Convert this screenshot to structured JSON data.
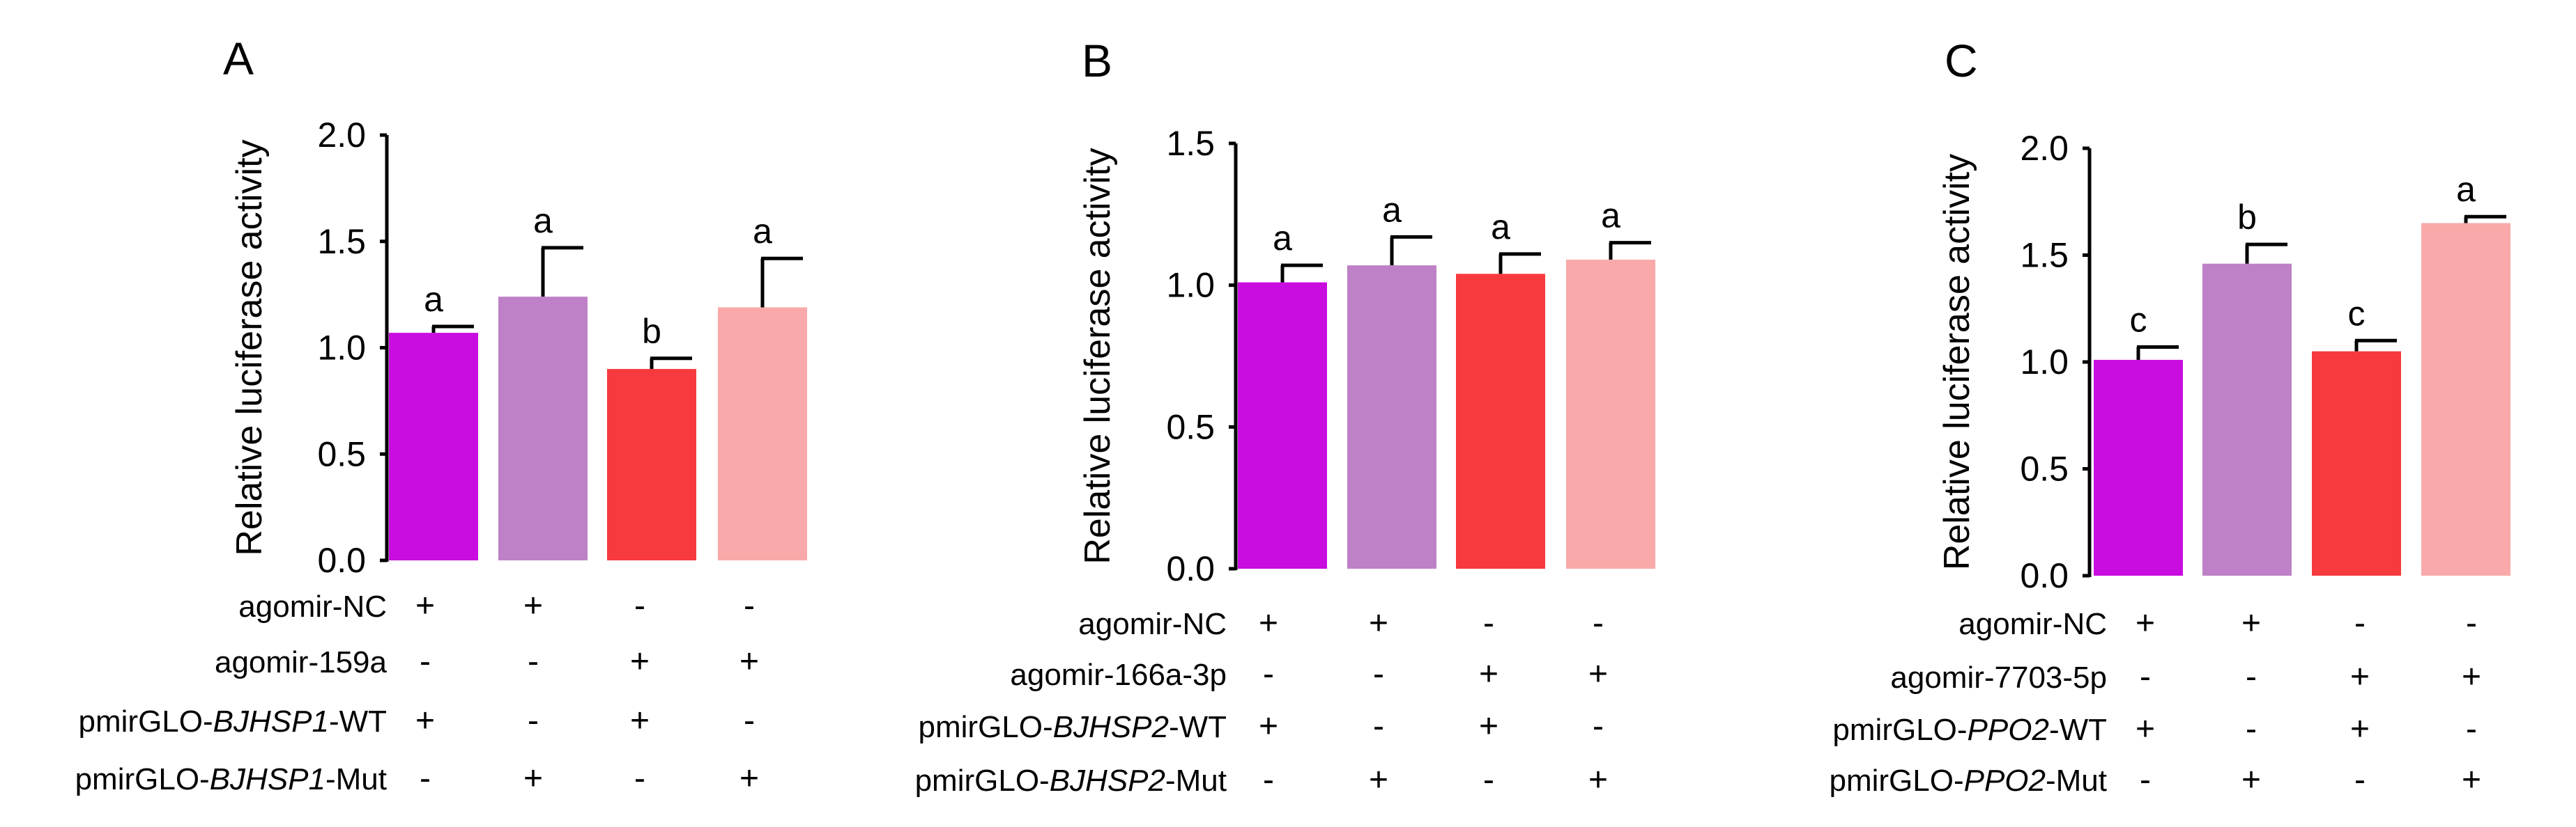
{
  "chart_data": [
    {
      "type": "bar",
      "panel_label": "A",
      "ylabel": "Relative luciferase activity",
      "ylim": [
        0,
        2.0
      ],
      "yticks": [
        "0.0",
        "0.5",
        "1.0",
        "1.5",
        "2.0"
      ],
      "bars": [
        {
          "value": 1.07,
          "error": 0.03,
          "letter": "a",
          "color": "#c90de0"
        },
        {
          "value": 1.24,
          "error": 0.23,
          "letter": "a",
          "color": "#be80c6"
        },
        {
          "value": 0.9,
          "error": 0.05,
          "letter": "b",
          "color": "#f73a3d"
        },
        {
          "value": 1.19,
          "error": 0.23,
          "letter": "a",
          "color": "#f9a9a9"
        }
      ],
      "conditions": [
        {
          "label": "agomir-NC",
          "signs": [
            "+",
            "+",
            "-",
            "-"
          ]
        },
        {
          "label": "agomir-159a",
          "signs": [
            "-",
            "-",
            "+",
            "+"
          ]
        },
        {
          "label_prefix": "pmirGLO-",
          "label_gene": "BJHSP1",
          "label_suffix": "-WT",
          "signs": [
            "+",
            "-",
            "+",
            "-"
          ]
        },
        {
          "label_prefix": "pmirGLO-",
          "label_gene": "BJHSP1",
          "label_suffix": "-Mut",
          "signs": [
            "-",
            "+",
            "-",
            "+"
          ]
        }
      ]
    },
    {
      "type": "bar",
      "panel_label": "B",
      "ylabel": "Relative luciferase activity",
      "ylim": [
        0,
        1.5
      ],
      "yticks": [
        "0.0",
        "0.5",
        "1.0",
        "1.5"
      ],
      "bars": [
        {
          "value": 1.01,
          "error": 0.06,
          "letter": "a",
          "color": "#c90de0"
        },
        {
          "value": 1.07,
          "error": 0.1,
          "letter": "a",
          "color": "#be80c6"
        },
        {
          "value": 1.04,
          "error": 0.07,
          "letter": "a",
          "color": "#f73a3d"
        },
        {
          "value": 1.09,
          "error": 0.06,
          "letter": "a",
          "color": "#f9a9a9"
        }
      ],
      "conditions": [
        {
          "label": "agomir-NC",
          "signs": [
            "+",
            "+",
            "-",
            "-"
          ]
        },
        {
          "label": "agomir-166a-3p",
          "signs": [
            "-",
            "-",
            "+",
            "+"
          ]
        },
        {
          "label_prefix": "pmirGLO-",
          "label_gene": "BJHSP2",
          "label_suffix": "-WT",
          "signs": [
            "+",
            "-",
            "+",
            "-"
          ]
        },
        {
          "label_prefix": "pmirGLO-",
          "label_gene": "BJHSP2",
          "label_suffix": "-Mut",
          "signs": [
            "-",
            "+",
            "-",
            "+"
          ]
        }
      ]
    },
    {
      "type": "bar",
      "panel_label": "C",
      "ylabel": "Relative luciferase activity",
      "ylim": [
        0,
        2.0
      ],
      "yticks": [
        "0.0",
        "0.5",
        "1.0",
        "1.5",
        "2.0"
      ],
      "bars": [
        {
          "value": 1.01,
          "error": 0.06,
          "letter": "c",
          "color": "#c90de0"
        },
        {
          "value": 1.46,
          "error": 0.09,
          "letter": "b",
          "color": "#be80c6"
        },
        {
          "value": 1.05,
          "error": 0.05,
          "letter": "c",
          "color": "#f73a3d"
        },
        {
          "value": 1.65,
          "error": 0.03,
          "letter": "a",
          "color": "#f9a9a9"
        }
      ],
      "conditions": [
        {
          "label": "agomir-NC",
          "signs": [
            "+",
            "+",
            "-",
            "-"
          ]
        },
        {
          "label": "agomir-7703-5p",
          "signs": [
            "-",
            "-",
            "+",
            "+"
          ]
        },
        {
          "label_prefix": "pmirGLO-",
          "label_gene": "PPO2",
          "label_suffix": "-WT",
          "signs": [
            "+",
            "-",
            "+",
            "-"
          ]
        },
        {
          "label_prefix": "pmirGLO-",
          "label_gene": "PPO2",
          "label_suffix": "-Mut",
          "signs": [
            "-",
            "+",
            "-",
            "+"
          ]
        }
      ]
    }
  ]
}
